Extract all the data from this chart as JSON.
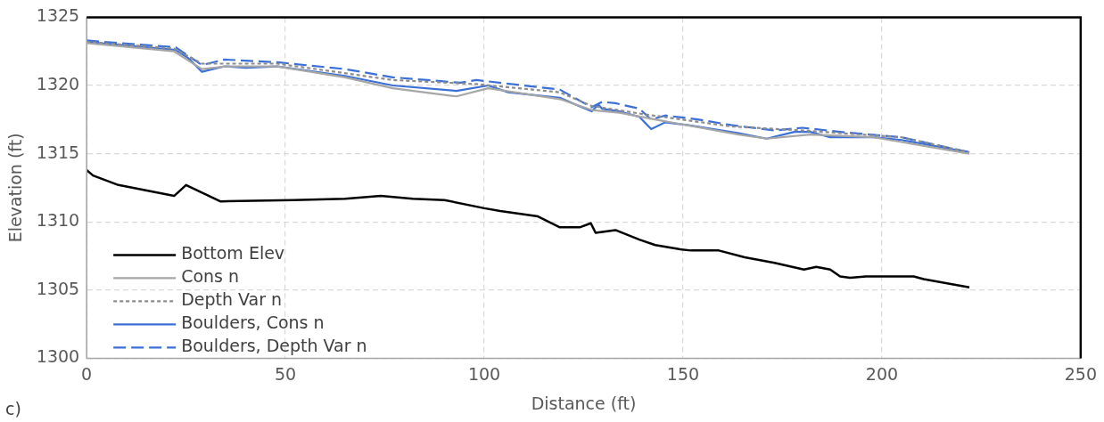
{
  "chart_data": {
    "type": "line",
    "xlabel": "Distance (ft)",
    "ylabel": "Elevation (ft)",
    "xlim": [
      0,
      250
    ],
    "xticks": [
      0,
      50,
      100,
      150,
      200,
      250
    ],
    "ylim": [
      1300,
      1325
    ],
    "yticks": [
      1300,
      1305,
      1310,
      1315,
      1320,
      1325
    ],
    "grid": true,
    "legend": "bottom left",
    "marker": "none",
    "annotations": [
      "c)"
    ],
    "series": [
      {
        "name": "Bottom Elev",
        "color": "#000000",
        "line_style": "solid",
        "x": [
          0,
          1.6,
          8,
          22,
          25,
          33.6,
          52,
          65,
          74,
          82,
          90,
          100,
          104,
          113.5,
          119,
          124,
          126.8,
          128,
          133,
          139,
          143,
          149,
          152,
          159,
          165.5,
          173,
          180.4,
          183.5,
          187,
          189.5,
          192,
          196,
          208,
          210.5,
          222
        ],
        "values": [
          1313.8,
          1313.4,
          1312.7,
          1311.9,
          1312.7,
          1311.5,
          1311.6,
          1311.7,
          1311.9,
          1311.7,
          1311.6,
          1311.0,
          1310.8,
          1310.4,
          1309.6,
          1309.6,
          1309.9,
          1309.2,
          1309.4,
          1308.7,
          1308.3,
          1308.0,
          1307.9,
          1307.9,
          1307.4,
          1307.0,
          1306.5,
          1306.7,
          1306.5,
          1306.0,
          1305.9,
          1306.0,
          1306.0,
          1305.8,
          1305.2
        ]
      },
      {
        "name": "Cons n",
        "color": "#a6a6a6",
        "line_style": "solid",
        "x": [
          0,
          22,
          29,
          35,
          48,
          65,
          77,
          93,
          101,
          119,
          127,
          134,
          145,
          164,
          171,
          182,
          198,
          222
        ],
        "values": [
          1323.1,
          1322.5,
          1321.2,
          1321.4,
          1321.4,
          1320.6,
          1319.8,
          1319.2,
          1319.8,
          1319.0,
          1318.2,
          1318.0,
          1317.4,
          1316.4,
          1316.1,
          1316.4,
          1316.2,
          1315.0
        ]
      },
      {
        "name": "Depth Var n",
        "color": "#8c8c8c",
        "line_style": "dotted",
        "x": [
          0,
          22,
          29,
          48,
          77,
          98,
          119,
          127,
          140,
          162,
          180,
          205,
          222
        ],
        "values": [
          1323.2,
          1322.7,
          1321.6,
          1321.6,
          1320.4,
          1320.1,
          1319.5,
          1318.5,
          1317.9,
          1317.0,
          1316.7,
          1316.2,
          1315.1
        ]
      },
      {
        "name": "Boulders, Cons n",
        "color": "#3a6fd8",
        "line_style": "solid",
        "x": [
          0,
          22.4,
          25.6,
          29,
          34.7,
          40,
          48,
          65,
          77,
          93,
          101,
          106,
          119,
          123,
          127,
          128.7,
          129.6,
          134,
          139,
          142,
          145.5,
          151,
          164,
          171,
          178,
          182,
          187,
          198,
          205,
          222
        ],
        "values": [
          1323.2,
          1322.6,
          1322.0,
          1321.0,
          1321.4,
          1321.3,
          1321.4,
          1320.7,
          1320.0,
          1319.6,
          1320.0,
          1319.5,
          1319.1,
          1318.6,
          1318.1,
          1318.6,
          1318.3,
          1318.1,
          1317.7,
          1316.8,
          1317.3,
          1317.1,
          1316.5,
          1316.1,
          1316.6,
          1316.6,
          1316.2,
          1316.2,
          1316.0,
          1315.1
        ]
      },
      {
        "name": "Boulders, Depth Var n",
        "color": "#3a6fd8",
        "line_style": "dashed",
        "x": [
          0,
          22.4,
          29,
          34.7,
          48,
          65,
          77,
          94,
          98,
          119,
          127,
          129.6,
          133,
          139,
          142,
          145.5,
          154,
          162,
          173,
          180,
          189.5,
          205,
          222
        ],
        "values": [
          1323.3,
          1322.8,
          1321.5,
          1321.9,
          1321.7,
          1321.2,
          1320.6,
          1320.2,
          1320.4,
          1319.7,
          1318.4,
          1318.8,
          1318.7,
          1318.3,
          1317.5,
          1317.8,
          1317.5,
          1317.1,
          1316.7,
          1316.9,
          1316.6,
          1316.2,
          1315.1
        ]
      }
    ]
  }
}
